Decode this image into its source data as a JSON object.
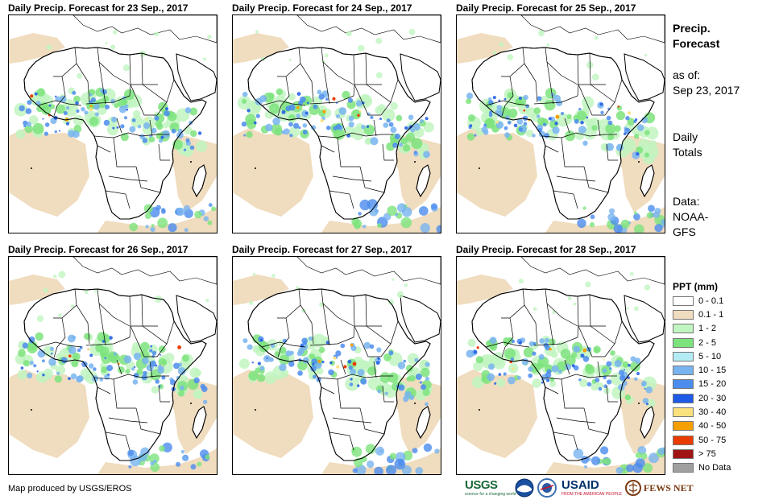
{
  "panels": [
    {
      "title": "Daily Precip. Forecast for 23 Sep., 2017"
    },
    {
      "title": "Daily Precip. Forecast for 24 Sep., 2017"
    },
    {
      "title": "Daily Precip. Forecast for 25 Sep., 2017"
    },
    {
      "title": "Daily Precip. Forecast for 26 Sep., 2017"
    },
    {
      "title": "Daily Precip. Forecast for 27 Sep., 2017"
    },
    {
      "title": "Daily Precip. Forecast for 28 Sep., 2017"
    }
  ],
  "sidebar": {
    "title_line1": "Precip.",
    "title_line2": "Forecast",
    "asof_line1": "as of:",
    "asof_line2": "Sep 23, 2017",
    "totals_line1": "Daily",
    "totals_line2": "Totals",
    "data_line1": "Data:",
    "data_line2": "NOAA-",
    "data_line3": "GFS"
  },
  "legend": {
    "title": "PPT (mm)",
    "items": [
      {
        "label": "0 - 0.1",
        "color": "#ffffff"
      },
      {
        "label": "0.1 - 1",
        "color": "#f0dcbe"
      },
      {
        "label": "1 - 2",
        "color": "#c1f5c1"
      },
      {
        "label": "2 - 5",
        "color": "#7de37d"
      },
      {
        "label": "5 - 10",
        "color": "#b4ecf4"
      },
      {
        "label": "10 - 15",
        "color": "#78b4f0"
      },
      {
        "label": "15 - 20",
        "color": "#4b8ced"
      },
      {
        "label": "20 - 30",
        "color": "#1e5ae6"
      },
      {
        "label": "30 - 40",
        "color": "#fae17d"
      },
      {
        "label": "40 - 50",
        "color": "#f5a000"
      },
      {
        "label": "50 - 75",
        "color": "#eb3c00"
      },
      {
        "label": "> 75",
        "color": "#a01414"
      },
      {
        "label": "No Data",
        "color": "#a0a0a0"
      }
    ]
  },
  "footer": {
    "credit": "Map produced by USGS/EROS",
    "usgs_text": "USGS",
    "usgs_tagline": "science for a changing world",
    "usaid_text": "USAID",
    "usaid_tagline": "FROM THE AMERICAN PEOPLE",
    "fews_text": "FEWS NET"
  }
}
